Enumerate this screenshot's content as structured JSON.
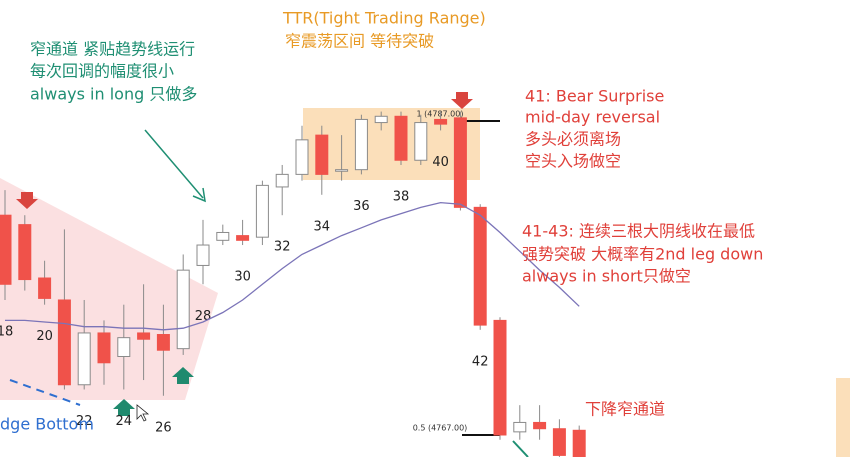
{
  "chart_data": {
    "type": "candlestick",
    "categories": [
      "18",
      null,
      "20",
      null,
      "22",
      null,
      "24",
      null,
      "26",
      null,
      "28",
      null,
      "30",
      null,
      "32",
      null,
      "34",
      null,
      "36",
      null,
      "38",
      null,
      "40",
      null,
      "42",
      null,
      null,
      null,
      null,
      null
    ],
    "open": [
      4781.0,
      4780.4,
      4777.0,
      4775.6,
      4770.2,
      4773.5,
      4772.0,
      4773.5,
      4773.4,
      4772.5,
      4777.8,
      4779.4,
      4779.7,
      4779.6,
      4782.8,
      4783.6,
      4786.1,
      4783.8,
      4783.9,
      4786.9,
      4787.3,
      4784.5,
      4787.1,
      4787.2,
      4781.5,
      4774.3,
      4767.2,
      4767.8,
      4767.4,
      4767.3
    ],
    "high": [
      4782.6,
      4781.0,
      4778.1,
      4780.1,
      4775.6,
      4774.3,
      4775.3,
      4776.6,
      4775.3,
      4778.5,
      4780.7,
      4780.4,
      4780.7,
      4783.2,
      4784.2,
      4786.7,
      4786.7,
      4786.1,
      4787.4,
      4787.6,
      4787.6,
      4787.4,
      4787.6,
      4787.6,
      4781.7,
      4774.5,
      4768.9,
      4768.9,
      4768.0,
      4767.6
    ],
    "low": [
      4775.6,
      4776.2,
      4775.3,
      4769.9,
      4769.9,
      4770.2,
      4769.9,
      4770.5,
      4769.5,
      4772.1,
      4776.6,
      4779.1,
      4779.1,
      4779.1,
      4781.0,
      4783.2,
      4782.3,
      4783.2,
      4783.6,
      4786.4,
      4784.2,
      4784.2,
      4786.4,
      4781.3,
      4773.7,
      4766.7,
      4766.7,
      4766.7,
      4765.6,
      4765.6
    ],
    "close": [
      4776.6,
      4776.9,
      4775.7,
      4770.2,
      4773.5,
      4771.6,
      4773.2,
      4773.1,
      4772.4,
      4777.5,
      4779.1,
      4779.9,
      4779.4,
      4782.9,
      4783.6,
      4785.8,
      4783.6,
      4783.9,
      4787.1,
      4787.3,
      4784.5,
      4786.9,
      4786.8,
      4781.5,
      4774.0,
      4767.0,
      4767.8,
      4767.4,
      4765.7,
      4765.6
    ],
    "up_color": "#ffffff",
    "down_color": "#f0524a",
    "ema": {
      "color": "#7b74b8",
      "values": [
        4774.3,
        4774.3,
        4774.2,
        4774.1,
        4773.9,
        4773.9,
        4773.8,
        4773.8,
        4773.7,
        4773.8,
        4774.2,
        4774.8,
        4775.6,
        4776.6,
        4777.6,
        4778.5,
        4779.1,
        4779.7,
        4780.2,
        4780.7,
        4781.1,
        4781.5,
        4781.8,
        4781.7,
        4781.0,
        4779.9,
        4778.7,
        4777.5,
        4776.4,
        4775.2
      ]
    },
    "levels": [
      {
        "value": 4787,
        "label": "1 (4787.00)"
      },
      {
        "value": 4767,
        "label": "0.5 (4767.00)"
      }
    ],
    "annotations": [
      {
        "text": "窄通道 紧贴趋势线运行",
        "color": "#1f8f73"
      },
      {
        "text": "每次回调的幅度很小",
        "color": "#1f8f73"
      },
      {
        "text": "always in long 只做多",
        "color": "#1f8f73"
      },
      {
        "text": "TTR(Tight Trading Range)",
        "color": "#e89a25"
      },
      {
        "text": "窄震荡区间 等待突破",
        "color": "#e89a25"
      },
      {
        "text": "41: Bear Surprise",
        "color": "#e0403a"
      },
      {
        "text": "mid-day reversal",
        "color": "#e0403a"
      },
      {
        "text": "多头必须离场",
        "color": "#e0403a"
      },
      {
        "text": "空头入场做空",
        "color": "#e0403a"
      },
      {
        "text": "41-43: 连续三根大阴线收在最低",
        "color": "#e0403a"
      },
      {
        "text": "强势突破 大概率有2nd leg down",
        "color": "#e0403a"
      },
      {
        "text": "always in short只做空",
        "color": "#e0403a"
      },
      {
        "text": "下降窄通道",
        "color": "#e0403a"
      },
      {
        "text": "dge Bottom",
        "color": "#2f6fd0"
      }
    ]
  }
}
